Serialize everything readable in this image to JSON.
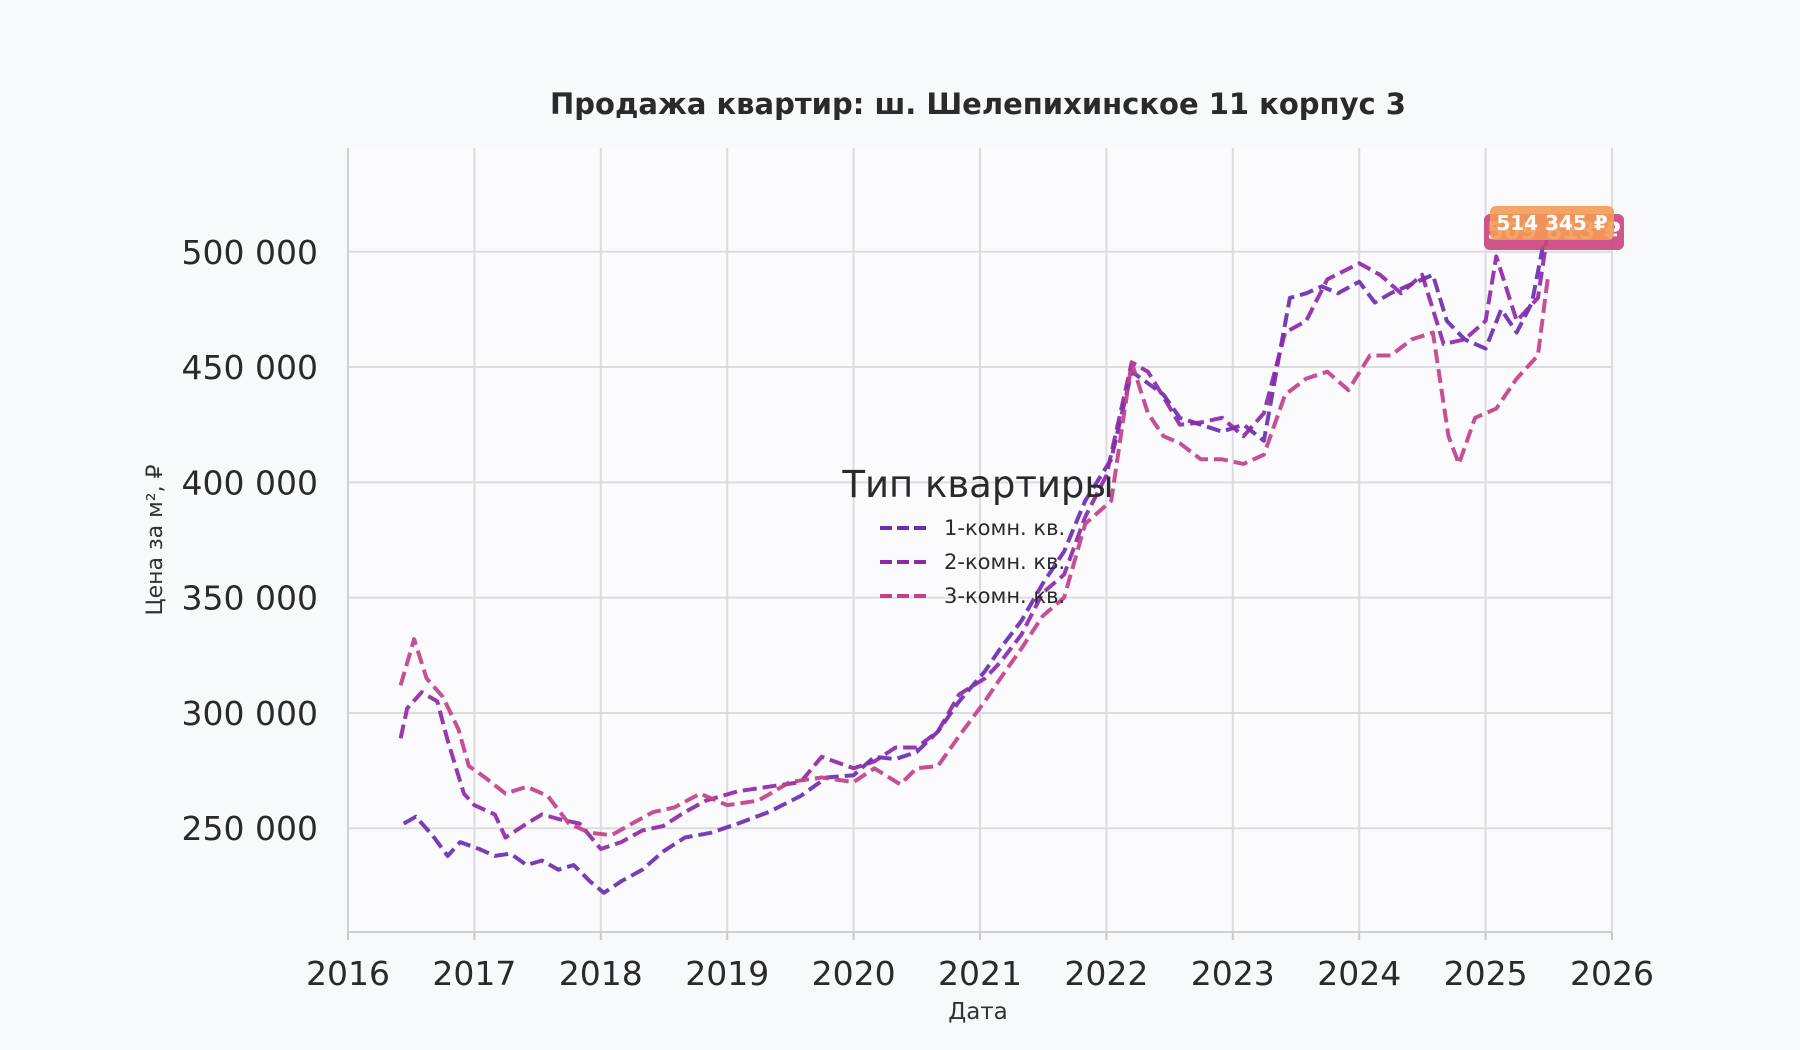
{
  "chart_data": {
    "type": "line",
    "title": "Продажа квартир: ш. Шелепихинское 11 корпус 3",
    "xlabel": "Дата",
    "ylabel": "Цена за м², ₽",
    "xlim": [
      "2016-01-01",
      "2026-01-01"
    ],
    "ylim": [
      205000,
      545000
    ],
    "x_ticks": [
      "2016",
      "2017",
      "2018",
      "2019",
      "2020",
      "2021",
      "2022",
      "2023",
      "2024",
      "2025",
      "2026"
    ],
    "y_ticks": [
      {
        "value": 250000,
        "label": "250 000"
      },
      {
        "value": 300000,
        "label": "300 000"
      },
      {
        "value": 350000,
        "label": "350 000"
      },
      {
        "value": 400000,
        "label": "400 000"
      },
      {
        "value": 450000,
        "label": "450 000"
      },
      {
        "value": 500000,
        "label": "500 000"
      }
    ],
    "grid": true,
    "legend": {
      "title": "Тип квартиры",
      "placement": "center"
    },
    "annotations": [
      {
        "text": "514 345 ₽",
        "color": "#f39a55"
      },
      {
        "text": "509 813 ₽",
        "color": "#c8457e"
      }
    ],
    "series": [
      {
        "name": "1-комн. кв.",
        "color": "#6a2fb0",
        "points": [
          [
            "2016-06-10",
            252000
          ],
          [
            "2016-07-15",
            255000
          ],
          [
            "2016-09-01",
            247000
          ],
          [
            "2016-10-15",
            238000
          ],
          [
            "2016-11-20",
            244000
          ],
          [
            "2017-01-15",
            241000
          ],
          [
            "2017-03-01",
            238000
          ],
          [
            "2017-04-15",
            239000
          ],
          [
            "2017-06-01",
            234000
          ],
          [
            "2017-07-15",
            236000
          ],
          [
            "2017-09-01",
            232000
          ],
          [
            "2017-10-15",
            234000
          ],
          [
            "2017-12-01",
            227000
          ],
          [
            "2018-01-10",
            222000
          ],
          [
            "2018-03-01",
            227000
          ],
          [
            "2018-05-01",
            232000
          ],
          [
            "2018-07-01",
            240000
          ],
          [
            "2018-09-01",
            246000
          ],
          [
            "2018-11-15",
            248000
          ],
          [
            "2019-02-01",
            252000
          ],
          [
            "2019-05-01",
            257000
          ],
          [
            "2019-08-01",
            264000
          ],
          [
            "2019-10-15",
            272000
          ],
          [
            "2020-01-01",
            273000
          ],
          [
            "2020-03-01",
            281000
          ],
          [
            "2020-05-01",
            280000
          ],
          [
            "2020-07-01",
            283000
          ],
          [
            "2020-09-01",
            292000
          ],
          [
            "2020-11-01",
            305000
          ],
          [
            "2021-01-15",
            318000
          ],
          [
            "2021-03-01",
            328000
          ],
          [
            "2021-05-01",
            340000
          ],
          [
            "2021-07-01",
            356000
          ],
          [
            "2021-09-01",
            370000
          ],
          [
            "2021-11-01",
            392000
          ],
          [
            "2022-01-15",
            410000
          ],
          [
            "2022-03-15",
            448000
          ],
          [
            "2022-05-01",
            443000
          ],
          [
            "2022-06-15",
            438000
          ],
          [
            "2022-08-01",
            428000
          ],
          [
            "2022-10-01",
            425000
          ],
          [
            "2022-12-01",
            422000
          ],
          [
            "2023-02-01",
            425000
          ],
          [
            "2023-04-01",
            418000
          ],
          [
            "2023-05-15",
            455000
          ],
          [
            "2023-06-15",
            480000
          ],
          [
            "2023-08-01",
            482000
          ],
          [
            "2023-09-15",
            485000
          ],
          [
            "2023-11-01",
            482000
          ],
          [
            "2024-01-01",
            487000
          ],
          [
            "2024-02-15",
            478000
          ],
          [
            "2024-04-01",
            482000
          ],
          [
            "2024-06-01",
            486000
          ],
          [
            "2024-08-01",
            490000
          ],
          [
            "2024-09-10",
            470000
          ],
          [
            "2024-11-01",
            462000
          ],
          [
            "2025-01-01",
            458000
          ],
          [
            "2025-02-15",
            475000
          ],
          [
            "2025-04-01",
            465000
          ],
          [
            "2025-05-15",
            478000
          ],
          [
            "2025-07-01",
            514345
          ]
        ]
      },
      {
        "name": "2-комн. кв.",
        "color": "#8e28a8",
        "points": [
          [
            "2016-06-01",
            289000
          ],
          [
            "2016-06-20",
            302000
          ],
          [
            "2016-08-01",
            309000
          ],
          [
            "2016-09-15",
            305000
          ],
          [
            "2016-10-15",
            288000
          ],
          [
            "2016-12-01",
            265000
          ],
          [
            "2017-01-01",
            260000
          ],
          [
            "2017-03-01",
            256000
          ],
          [
            "2017-04-01",
            246000
          ],
          [
            "2017-06-01",
            252000
          ],
          [
            "2017-07-15",
            256000
          ],
          [
            "2017-09-01",
            254000
          ],
          [
            "2017-11-01",
            252000
          ],
          [
            "2018-01-01",
            241000
          ],
          [
            "2018-03-01",
            244000
          ],
          [
            "2018-05-01",
            249000
          ],
          [
            "2018-07-01",
            251000
          ],
          [
            "2018-09-01",
            257000
          ],
          [
            "2018-11-01",
            262000
          ],
          [
            "2019-02-01",
            266000
          ],
          [
            "2019-05-01",
            268000
          ],
          [
            "2019-08-01",
            270000
          ],
          [
            "2019-10-01",
            281000
          ],
          [
            "2020-01-01",
            276000
          ],
          [
            "2020-03-01",
            279000
          ],
          [
            "2020-05-01",
            285000
          ],
          [
            "2020-07-01",
            285000
          ],
          [
            "2020-09-01",
            292000
          ],
          [
            "2020-11-01",
            308000
          ],
          [
            "2021-01-15",
            315000
          ],
          [
            "2021-03-01",
            322000
          ],
          [
            "2021-05-01",
            334000
          ],
          [
            "2021-07-01",
            352000
          ],
          [
            "2021-09-01",
            360000
          ],
          [
            "2021-11-01",
            385000
          ],
          [
            "2022-01-01",
            403000
          ],
          [
            "2022-03-15",
            452000
          ],
          [
            "2022-05-01",
            448000
          ],
          [
            "2022-06-15",
            437000
          ],
          [
            "2022-08-01",
            425000
          ],
          [
            "2022-10-01",
            426000
          ],
          [
            "2022-12-01",
            428000
          ],
          [
            "2023-02-01",
            420000
          ],
          [
            "2023-04-01",
            430000
          ],
          [
            "2023-06-01",
            465000
          ],
          [
            "2023-08-01",
            470000
          ],
          [
            "2023-10-01",
            488000
          ],
          [
            "2024-01-01",
            495000
          ],
          [
            "2024-03-01",
            490000
          ],
          [
            "2024-05-01",
            482000
          ],
          [
            "2024-07-01",
            490000
          ],
          [
            "2024-09-01",
            460000
          ],
          [
            "2024-11-01",
            462000
          ],
          [
            "2025-01-01",
            470000
          ],
          [
            "2025-02-01",
            498000
          ],
          [
            "2025-04-01",
            470000
          ],
          [
            "2025-06-01",
            480000
          ],
          [
            "2025-07-01",
            509813
          ]
        ]
      },
      {
        "name": "3-комн. кв.",
        "color": "#c0418a",
        "points": [
          [
            "2016-06-01",
            312000
          ],
          [
            "2016-07-10",
            332000
          ],
          [
            "2016-08-15",
            315000
          ],
          [
            "2016-10-01",
            307000
          ],
          [
            "2016-11-15",
            293000
          ],
          [
            "2016-12-15",
            277000
          ],
          [
            "2017-02-01",
            272000
          ],
          [
            "2017-04-01",
            265000
          ],
          [
            "2017-06-01",
            268000
          ],
          [
            "2017-08-01",
            264000
          ],
          [
            "2017-10-01",
            252000
          ],
          [
            "2017-12-01",
            248000
          ],
          [
            "2018-02-01",
            247000
          ],
          [
            "2018-04-01",
            252000
          ],
          [
            "2018-06-01",
            257000
          ],
          [
            "2018-08-01",
            259000
          ],
          [
            "2018-10-15",
            265000
          ],
          [
            "2019-01-01",
            260000
          ],
          [
            "2019-04-01",
            262000
          ],
          [
            "2019-07-01",
            270000
          ],
          [
            "2019-10-01",
            272000
          ],
          [
            "2020-01-01",
            270000
          ],
          [
            "2020-03-01",
            276000
          ],
          [
            "2020-05-15",
            269000
          ],
          [
            "2020-07-01",
            276000
          ],
          [
            "2020-09-01",
            277000
          ],
          [
            "2020-11-01",
            290000
          ],
          [
            "2021-01-15",
            305000
          ],
          [
            "2021-03-01",
            315000
          ],
          [
            "2021-05-01",
            328000
          ],
          [
            "2021-07-01",
            342000
          ],
          [
            "2021-09-01",
            350000
          ],
          [
            "2021-11-01",
            382000
          ],
          [
            "2022-01-15",
            392000
          ],
          [
            "2022-03-15",
            452000
          ],
          [
            "2022-05-01",
            430000
          ],
          [
            "2022-06-15",
            420000
          ],
          [
            "2022-08-01",
            417000
          ],
          [
            "2022-10-01",
            410000
          ],
          [
            "2022-12-01",
            410000
          ],
          [
            "2023-02-01",
            408000
          ],
          [
            "2023-04-01",
            412000
          ],
          [
            "2023-06-01",
            438000
          ],
          [
            "2023-08-01",
            445000
          ],
          [
            "2023-10-01",
            448000
          ],
          [
            "2023-12-01",
            440000
          ],
          [
            "2024-02-01",
            455000
          ],
          [
            "2024-04-01",
            455000
          ],
          [
            "2024-06-01",
            462000
          ],
          [
            "2024-08-01",
            465000
          ],
          [
            "2024-09-15",
            420000
          ],
          [
            "2024-10-15",
            408000
          ],
          [
            "2024-12-01",
            428000
          ],
          [
            "2025-02-01",
            432000
          ],
          [
            "2025-04-01",
            445000
          ],
          [
            "2025-06-01",
            455000
          ],
          [
            "2025-07-01",
            490000
          ]
        ]
      }
    ]
  }
}
